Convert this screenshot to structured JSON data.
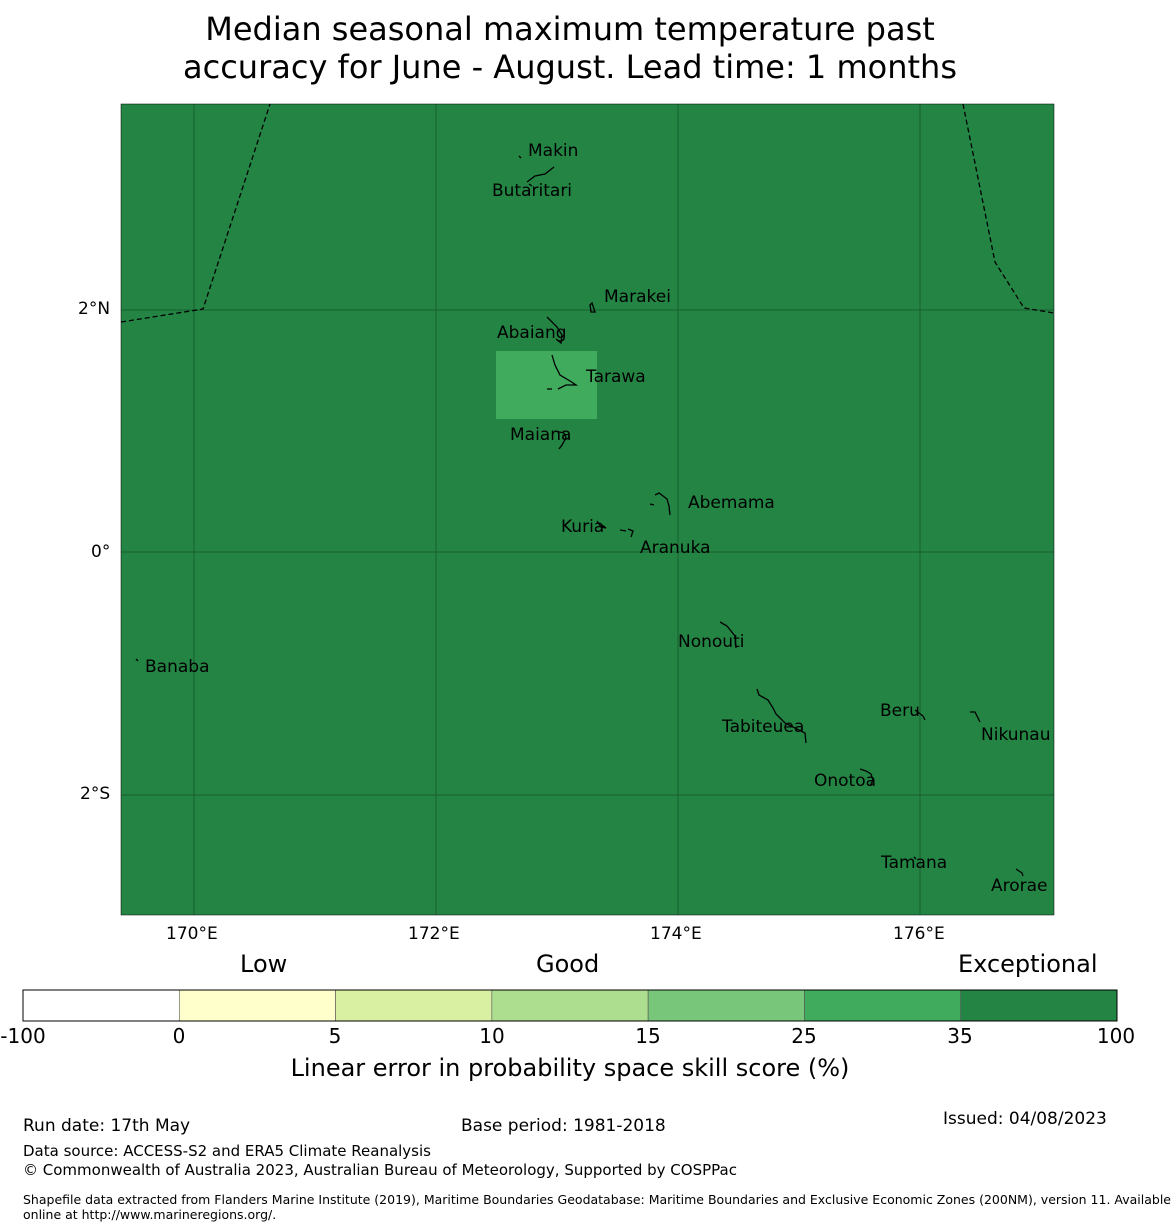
{
  "title": {
    "line1": "Median seasonal maximum temperature past",
    "line2": "accuracy for June - August. Lead time: 1 months"
  },
  "map": {
    "background_color": "#238443",
    "highlight_color": "#41ab5d",
    "lat_labels": [
      "2°N",
      "0°",
      "2°S"
    ],
    "lon_labels": [
      "170°E",
      "172°E",
      "174°E",
      "176°E"
    ],
    "islands": [
      "Makin",
      "Butaritari",
      "Marakei",
      "Abaiang",
      "Tarawa",
      "Maiana",
      "Abemama",
      "Kuria",
      "Aranuka",
      "Nonouti",
      "Banaba",
      "Beru",
      "Nikunau",
      "Tabiteuea",
      "Onotoa",
      "Tamana",
      "Arorae"
    ]
  },
  "colorbar": {
    "headers": [
      "Low",
      "Good",
      "Exceptional"
    ],
    "ticks": [
      "-100",
      "0",
      "5",
      "10",
      "15",
      "25",
      "35",
      "100"
    ],
    "colors": [
      "#ffffff",
      "#ffffcc",
      "#d9f0a3",
      "#addd8e",
      "#78c679",
      "#41ab5d",
      "#238443"
    ],
    "label": "Linear error in probability space skill score (%)"
  },
  "footer": {
    "run_date": "Run date: 17th May",
    "base_period": "Base period: 1981-2018",
    "issued": "Issued: 04/08/2023",
    "data_source": "Data source: ACCESS-S2 and ERA5 Climate Reanalysis",
    "copyright": "© Commonwealth of Australia 2023, Australian Bureau of Meteorology, Supported by COSPPac",
    "shapefile_line1": "Shapefile data extracted from Flanders Marine Institute (2019), Maritime Boundaries Geodatabase: Maritime Boundaries and Exclusive Economic Zones (200NM), version 11. Available",
    "shapefile_line2": "online at http://www.marineregions.org/."
  }
}
